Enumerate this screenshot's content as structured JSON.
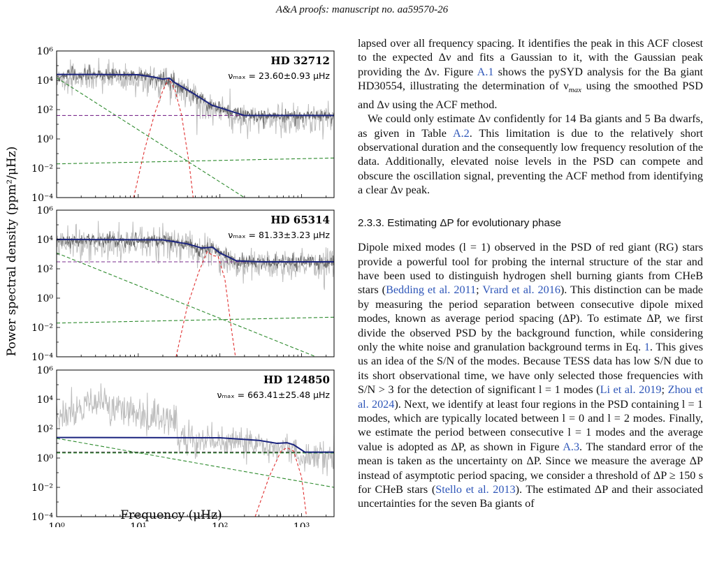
{
  "running_header": "A&A proofs: manuscript no. aa59570-26",
  "figure": {
    "ylabel": "Power spectral density (ppm²/μHz)",
    "xlabel": "Frequency (μHz)",
    "y_ticks": [
      "10⁶",
      "10⁴",
      "10²",
      "10⁰",
      "10⁻²",
      "10⁻⁴"
    ],
    "x_ticks": [
      "10⁰",
      "10¹",
      "10²",
      "10³"
    ],
    "panels": [
      {
        "star": "HD 32712",
        "numax": "νₘₐₓ = 23.60±0.93 μHz"
      },
      {
        "star": "HD 65314",
        "numax": "νₘₐₓ = 81.33±3.23 μHz"
      },
      {
        "star": "HD 124850",
        "numax": "νₘₐₓ = 663.41±25.48 μHz"
      }
    ]
  },
  "chart_data": [
    {
      "type": "line",
      "title": "HD 32712",
      "xlabel": "Frequency (μHz)",
      "ylabel": "Power spectral density (ppm²/μHz)",
      "xscale": "log",
      "yscale": "log",
      "xlim": [
        1,
        2500
      ],
      "ylim": [
        0.0001,
        1000000
      ],
      "series": [
        {
          "x": [
            1,
            3,
            10,
            16,
            20,
            24,
            28,
            32,
            45,
            80,
            200,
            2500
          ],
          "y": [
            25000,
            25000,
            24000,
            16000,
            12000,
            14000,
            7000,
            4500,
            1500,
            200,
            40,
            40
          ]
        },
        {
          "x": [
            1,
            200
          ],
          "y": [
            15000,
            0.0001
          ]
        },
        {
          "x": [
            1,
            2500
          ],
          "y": [
            40,
            40
          ]
        },
        {
          "x": [
            1,
            2500
          ],
          "y": [
            0.02,
            0.05
          ]
        },
        {
          "x": [
            8.8,
            12,
            16,
            20,
            23.6,
            28,
            34,
            42,
            47
          ],
          "y": [
            0.0001,
            0.2,
            60,
            2000,
            13000,
            2500,
            40,
            0.02,
            0.0001
          ]
        }
      ]
    },
    {
      "type": "line",
      "title": "HD 65314",
      "xlabel": "Frequency (μHz)",
      "ylabel": "Power spectral density (ppm²/μHz)",
      "xscale": "log",
      "yscale": "log",
      "xlim": [
        1,
        2500
      ],
      "ylim": [
        0.0001,
        1000000
      ],
      "series": [
        {
          "x": [
            1,
            20,
            40,
            60,
            81,
            100,
            160,
            300,
            2500
          ],
          "y": [
            10000,
            9500,
            5000,
            2600,
            3000,
            1200,
            350,
            300,
            300
          ]
        },
        {
          "x": [
            1,
            1500
          ],
          "y": [
            1200,
            0.0001
          ]
        },
        {
          "x": [
            1,
            2500
          ],
          "y": [
            300,
            300
          ]
        },
        {
          "x": [
            1,
            2500
          ],
          "y": [
            0.02,
            0.05
          ]
        },
        {
          "x": [
            29,
            40,
            55,
            70,
            81.3,
            95,
            115,
            140,
            155
          ],
          "y": [
            0.0001,
            0.3,
            60,
            1500,
            800,
            700,
            20,
            0.005,
            0.0001
          ]
        }
      ]
    },
    {
      "type": "line",
      "title": "HD 124850",
      "xlabel": "Frequency (μHz)",
      "ylabel": "Power spectral density (ppm²/μHz)",
      "xscale": "log",
      "yscale": "log",
      "xlim": [
        1,
        2500
      ],
      "ylim": [
        0.0001,
        1000000
      ],
      "series": [
        {
          "x": [
            1,
            100,
            300,
            500,
            663,
            800,
            1100,
            2500
          ],
          "y": [
            25,
            24,
            16,
            10,
            11,
            8,
            2.5,
            2.5
          ]
        },
        {
          "x": [
            1,
            2500
          ],
          "y": [
            22,
            0.01
          ]
        },
        {
          "x": [
            1,
            2500
          ],
          "y": [
            2.5,
            2.5
          ]
        },
        {
          "x": [
            1,
            2500
          ],
          "y": [
            2.2,
            2.2
          ]
        },
        {
          "x": [
            270,
            400,
            560,
            663,
            800,
            1000,
            1150
          ],
          "y": [
            0.0001,
            0.05,
            3,
            5,
            3,
            0.05,
            0.0001
          ]
        }
      ]
    }
  ],
  "text": {
    "p1_a": "lapsed over all frequency spacing. It identifies the peak in this ACF closest to the expected Δν and fits a Gaussian to it, with the Gaussian peak providing the Δν. Figure ",
    "p1_link": "A.1",
    "p1_b": " shows the pySYD analysis for the Ba giant HD30554, illustrating the determination of ν",
    "p1_sub": "max",
    "p1_c": " using the smoothed PSD and Δν using the ACF method.",
    "p2_a": "We could only estimate Δν confidently for 14 Ba giants and 5 Ba dwarfs, as given in Table ",
    "p2_link": "A.2",
    "p2_b": ". This limitation is due to the relatively short observational duration and the consequently low frequency resolution of the data. Additionally, elevated noise levels in the PSD can compete and obscure the oscillation signal, preventing the ACF method from identifying a clear Δν peak.",
    "heading": "2.3.3. Estimating ΔP for evolutionary phase",
    "p3_a": "Dipole mixed modes (l = 1) observed in the PSD of red giant (RG) stars provide a powerful tool for probing the internal structure of the star and have been used to distinguish hydrogen shell burning giants from CHeB stars (",
    "p3_link1": "Bedding et al. 2011",
    "p3_sep1": "; ",
    "p3_link2": "Vrard et al. 2016",
    "p3_b": "). This distinction can be made by measuring the period separation between consecutive dipole mixed modes, known as average period spacing (ΔP). To estimate ΔP, we first divide the observed PSD by the background function, while considering only the white noise and granulation background terms in Eq. ",
    "p3_link3": "1",
    "p3_c": ". This gives us an idea of the S/N of the modes. Because TESS data has low S/N due to its short observational time, we have only selected those frequencies with S/N > 3 for the detection of significant l = 1 modes (",
    "p3_link4": "Li et al. 2019",
    "p3_sep2": "; ",
    "p3_link5": "Zhou et al. 2024",
    "p3_d": "). Next, we identify at least four regions in the PSD containing l = 1 modes, which are typically located between l = 0 and l = 2 modes. Finally, we estimate the period between consecutive l = 1 modes and the average value is adopted as ΔP, as shown in Figure ",
    "p3_link6": "A.3",
    "p3_e": ". The standard error of the mean is taken as the uncertainty on ΔP. Since we measure the average ΔP instead of asymptotic period spacing, we consider a threshold of ΔP ≥ 150 s for CHeB stars (",
    "p3_link7": "Stello et al. 2013",
    "p3_f": "). The estimated ΔP and their associated uncertainties for the seven Ba giants of"
  },
  "colors": {
    "raw_psd": "#bdbdbd",
    "smoothed_psd": "#6b6b6b",
    "model": "#1a237e",
    "granulation": "#2e8b2e",
    "white_noise": "#7b2d8e",
    "gaussian": "#e03030",
    "link": "#2d55b8"
  }
}
